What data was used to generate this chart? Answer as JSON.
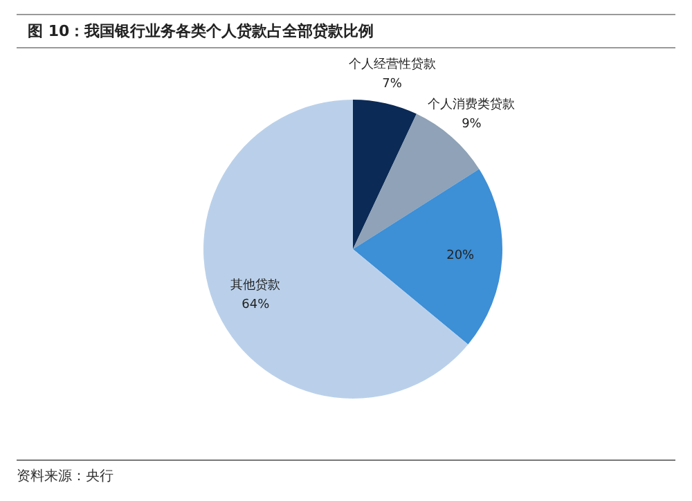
{
  "chart_data": {
    "type": "pie",
    "title": "图 10：我国银行业务各类个人贷款占全部贷款比例",
    "categories": [
      "个人经营性贷款",
      "个人消费类贷款",
      null,
      "其他贷款"
    ],
    "values": [
      7,
      9,
      20,
      64
    ],
    "value_labels": [
      "7%",
      "9%",
      "20%",
      "64%"
    ],
    "colors": [
      "#0b2a56",
      "#8fa2b7",
      "#3d8fd6",
      "#bad0ea"
    ],
    "legend": false,
    "annotations": [
      "资料来源：央行"
    ]
  }
}
